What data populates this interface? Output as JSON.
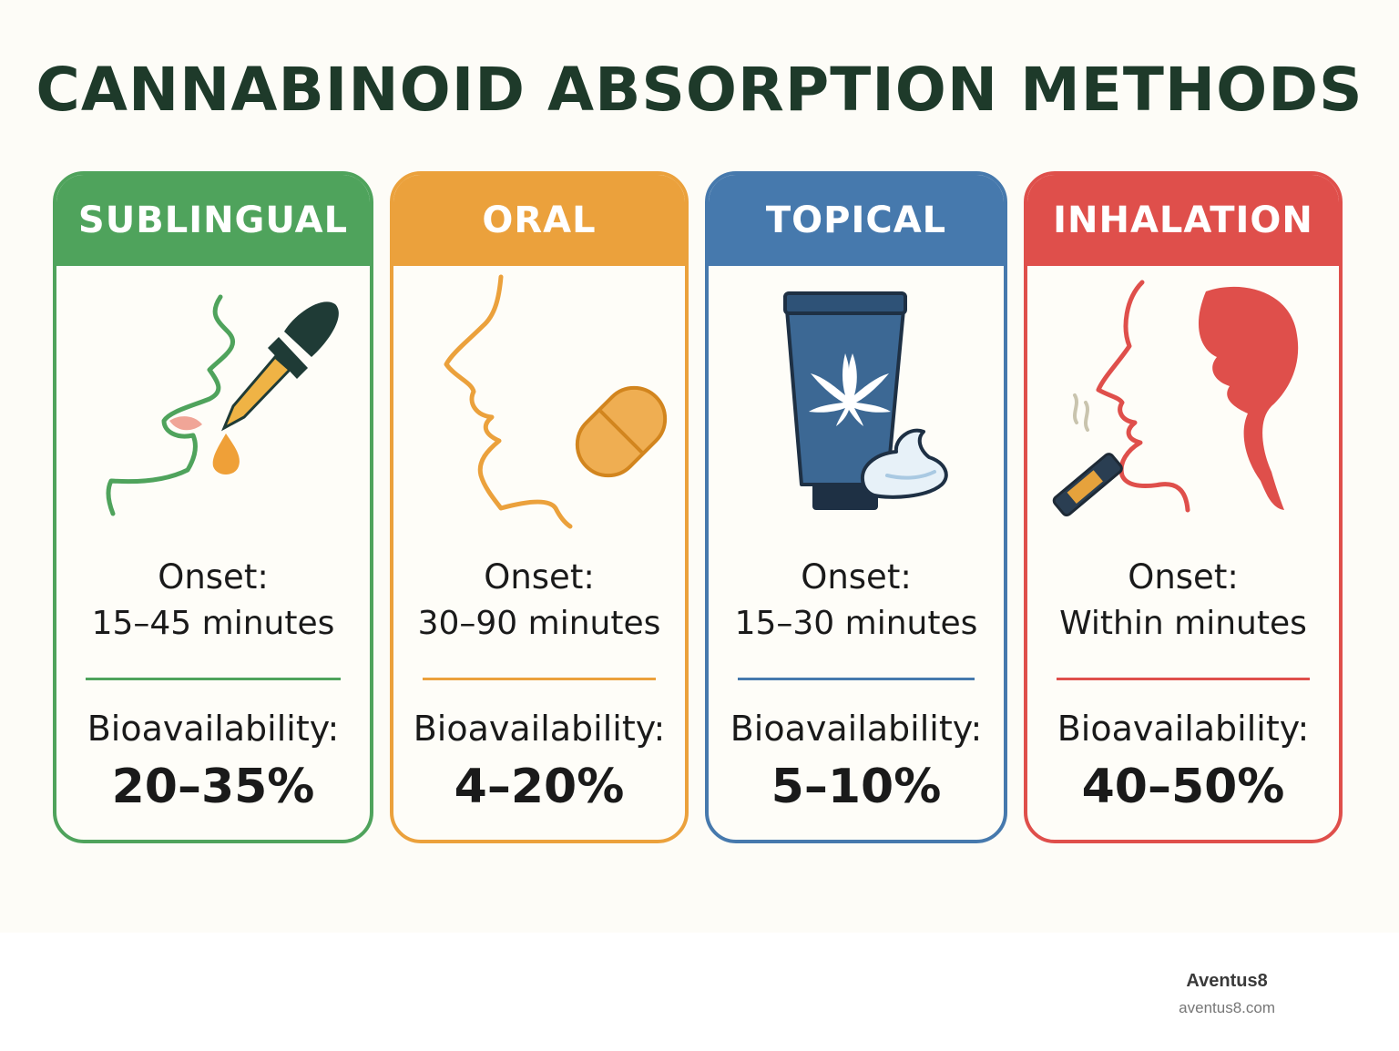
{
  "title": "CANNABINOID ABSORPTION METHODS",
  "colors": {
    "title": "#1e3a2a",
    "sublingual": "#4fa35c",
    "oral": "#eba13c",
    "topical": "#4679ad",
    "inhalation": "#df4f4b"
  },
  "cards": [
    {
      "name": "SUBLINGUAL",
      "icon": "tincture-dropper-under-tongue-icon",
      "onset_label": "Onset:",
      "onset_value": "15–45 minutes",
      "bio_label": "Bioavailability:",
      "bio_value": "20–35%"
    },
    {
      "name": "ORAL",
      "icon": "face-profile-with-capsule-icon",
      "onset_label": "Onset:",
      "onset_value": "30–90 minutes",
      "bio_label": "Bioavailability:",
      "bio_value": "4–20%"
    },
    {
      "name": "TOPICAL",
      "icon": "cream-tube-with-cannabis-leaf-icon",
      "onset_label": "Onset:",
      "onset_value": "15–30 minutes",
      "bio_label": "Bioavailability:",
      "bio_value": "5–10%"
    },
    {
      "name": "INHALATION",
      "icon": "head-profile-with-vape-pen-icon",
      "onset_label": "Onset:",
      "onset_value": "Within minutes",
      "bio_label": "Bioavailability:",
      "bio_value": "40–50%"
    }
  ],
  "brand": {
    "name": "Aventus8",
    "url": "aventus8.com"
  }
}
